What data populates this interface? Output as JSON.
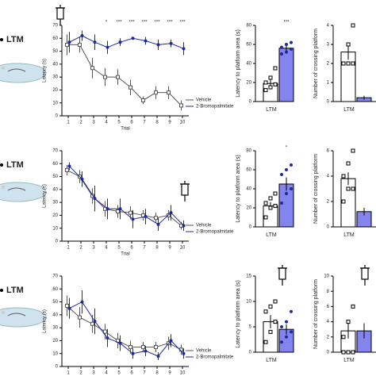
{
  "row_labels": [
    "LTM",
    "LTM",
    "LTM"
  ],
  "chart_data": [
    {
      "type": "line",
      "xlabel": "Trial",
      "ylabel": "Latency (s)",
      "x": [
        1,
        2,
        3,
        4,
        5,
        6,
        7,
        8,
        9,
        10
      ],
      "xlim": [
        0.5,
        10.5
      ],
      "xticks": [
        1,
        2,
        3,
        4,
        5,
        6,
        7,
        8,
        9,
        10
      ],
      "ylim": [
        0,
        70
      ],
      "yticks": [
        0,
        10,
        20,
        30,
        40,
        50,
        60,
        70
      ],
      "series": [
        {
          "name": "Vehicle",
          "color": "#555555",
          "marker": "square",
          "values": [
            55,
            55,
            37,
            30,
            30,
            22,
            12,
            18,
            18,
            8
          ],
          "errors": [
            8,
            6,
            8,
            7,
            6,
            6,
            3,
            5,
            5,
            4
          ]
        },
        {
          "name": "2-Bromopalmitate",
          "color": "#1c2a9e",
          "marker": "circle",
          "values": [
            57,
            62,
            57,
            53,
            57,
            60,
            58,
            55,
            56,
            52
          ],
          "errors": [
            8,
            4,
            6,
            5,
            3,
            1,
            3,
            4,
            3,
            5
          ]
        }
      ],
      "annotations": [
        {
          "x": 4,
          "text": "*"
        },
        {
          "x": 5,
          "text": "***"
        },
        {
          "x": 6,
          "text": "***"
        },
        {
          "x": 7,
          "text": "***"
        },
        {
          "x": 8,
          "text": "***"
        },
        {
          "x": 9,
          "text": "***"
        },
        {
          "x": 10,
          "text": "***"
        }
      ]
    },
    {
      "type": "bar",
      "ylabel": "Latency to platform area (s)",
      "categories": [
        "LTM"
      ],
      "ylim": [
        0,
        80
      ],
      "yticks": [
        0,
        20,
        40,
        60,
        80
      ],
      "series": [
        {
          "color": "#ffffff",
          "values": [
            19
          ],
          "errors": [
            4
          ],
          "points": [
            12,
            15,
            18,
            20,
            25,
            35
          ]
        },
        {
          "color": "#8484ee",
          "values": [
            56
          ],
          "errors": [
            3
          ],
          "points": [
            50,
            52,
            55,
            57,
            60,
            62
          ],
          "annotation": "***"
        }
      ]
    },
    {
      "type": "bar",
      "ylabel": "Number of crossing platform",
      "categories": [
        "LTM"
      ],
      "ylim": [
        0,
        4
      ],
      "yticks": [
        0,
        1,
        2,
        3,
        4
      ],
      "series": [
        {
          "color": "#ffffff",
          "values": [
            2.6
          ],
          "errors": [
            0.4
          ],
          "points": [
            2,
            2,
            2,
            2,
            3,
            4
          ]
        },
        {
          "color": "#8484ee",
          "values": [
            0.2
          ],
          "errors": [
            0.1
          ],
          "points": []
        }
      ]
    },
    {
      "type": "line",
      "xlabel": "Trial",
      "ylabel": "Latency (s)",
      "x": [
        1,
        2,
        3,
        4,
        5,
        6,
        7,
        8,
        9,
        10
      ],
      "xlim": [
        0.5,
        10.5
      ],
      "xticks": [
        1,
        2,
        3,
        4,
        5,
        6,
        7,
        8,
        9,
        10
      ],
      "ylim": [
        0,
        70
      ],
      "yticks": [
        0,
        10,
        20,
        30,
        40,
        50,
        60,
        70
      ],
      "series": [
        {
          "name": "Vehicle",
          "color": "#555555",
          "marker": "square",
          "values": [
            55,
            50,
            35,
            25,
            23,
            22,
            20,
            18,
            20,
            12
          ],
          "errors": [
            4,
            5,
            6,
            6,
            5,
            5,
            4,
            4,
            4,
            3
          ]
        },
        {
          "name": "2-Bromopalmitate",
          "color": "#1c2a9e",
          "marker": "circle",
          "values": [
            58,
            48,
            33,
            25,
            25,
            17,
            19,
            13,
            22,
            12
          ],
          "errors": [
            3,
            6,
            10,
            8,
            8,
            7,
            6,
            5,
            6,
            4
          ]
        }
      ],
      "annotations": []
    },
    {
      "type": "bar",
      "ylabel": "Latency to platform area (s)",
      "categories": [
        "LTM"
      ],
      "ylim": [
        0,
        80
      ],
      "yticks": [
        0,
        20,
        40,
        60,
        80
      ],
      "series": [
        {
          "color": "#ffffff",
          "values": [
            22
          ],
          "errors": [
            4
          ],
          "points": [
            10,
            20,
            22,
            25,
            30,
            35
          ]
        },
        {
          "color": "#8484ee",
          "values": [
            45
          ],
          "errors": [
            7
          ],
          "points": [
            25,
            35,
            40,
            55,
            60,
            65
          ],
          "annotation": "*"
        }
      ]
    },
    {
      "type": "bar",
      "ylabel": "Number of crossing platform",
      "categories": [
        "LTM"
      ],
      "ylim": [
        0,
        6
      ],
      "yticks": [
        0,
        2,
        4,
        6
      ],
      "series": [
        {
          "color": "#ffffff",
          "values": [
            3.8
          ],
          "errors": [
            0.5
          ],
          "points": [
            2,
            3,
            3,
            4,
            5,
            6
          ]
        },
        {
          "color": "#8484ee",
          "values": [
            1.2
          ],
          "errors": [
            0.3
          ],
          "points": []
        }
      ]
    },
    {
      "type": "line",
      "xlabel": "Trial",
      "ylabel": "Latency (s)",
      "x": [
        1,
        2,
        3,
        4,
        5,
        6,
        7,
        8,
        9,
        10
      ],
      "xlim": [
        0.5,
        10.5
      ],
      "xticks": [
        1,
        2,
        3,
        4,
        5,
        6,
        7,
        8,
        9,
        10
      ],
      "ylim": [
        0,
        70
      ],
      "yticks": [
        0,
        10,
        20,
        30,
        40,
        50,
        60,
        70
      ],
      "series": [
        {
          "name": "Vehicle",
          "color": "#555555",
          "marker": "square",
          "values": [
            47,
            38,
            33,
            27,
            20,
            15,
            15,
            15,
            18,
            13
          ],
          "errors": [
            8,
            8,
            7,
            6,
            6,
            5,
            4,
            4,
            5,
            4
          ]
        },
        {
          "name": "2-Bromopalmitate",
          "color": "#1c2a9e",
          "marker": "circle",
          "values": [
            45,
            50,
            35,
            22,
            18,
            10,
            12,
            8,
            20,
            10
          ],
          "errors": [
            8,
            9,
            10,
            7,
            6,
            4,
            4,
            3,
            5,
            4
          ]
        }
      ],
      "annotations": []
    },
    {
      "type": "bar",
      "ylabel": "Latency to platform area (s)",
      "categories": [
        "LTM"
      ],
      "ylim": [
        0,
        15
      ],
      "yticks": [
        0,
        5,
        10,
        15
      ],
      "series": [
        {
          "color": "#ffffff",
          "values": [
            6
          ],
          "errors": [
            1.3
          ],
          "points": [
            2,
            4,
            6,
            8,
            9,
            10
          ]
        },
        {
          "color": "#8484ee",
          "values": [
            4.5
          ],
          "errors": [
            1
          ],
          "points": [
            2,
            3,
            4,
            5,
            6,
            8
          ]
        }
      ]
    },
    {
      "type": "bar",
      "ylabel": "Number of crossing platform",
      "categories": [
        "LTM"
      ],
      "ylim": [
        0,
        10
      ],
      "yticks": [
        0,
        2,
        4,
        6,
        8,
        10
      ],
      "series": [
        {
          "color": "#ffffff",
          "values": [
            2.8
          ],
          "errors": [
            1
          ],
          "points": [
            0,
            0,
            0,
            2,
            4,
            6
          ]
        },
        {
          "color": "#8484ee",
          "values": [
            2.8
          ],
          "errors": [
            1
          ],
          "points": []
        }
      ]
    }
  ]
}
